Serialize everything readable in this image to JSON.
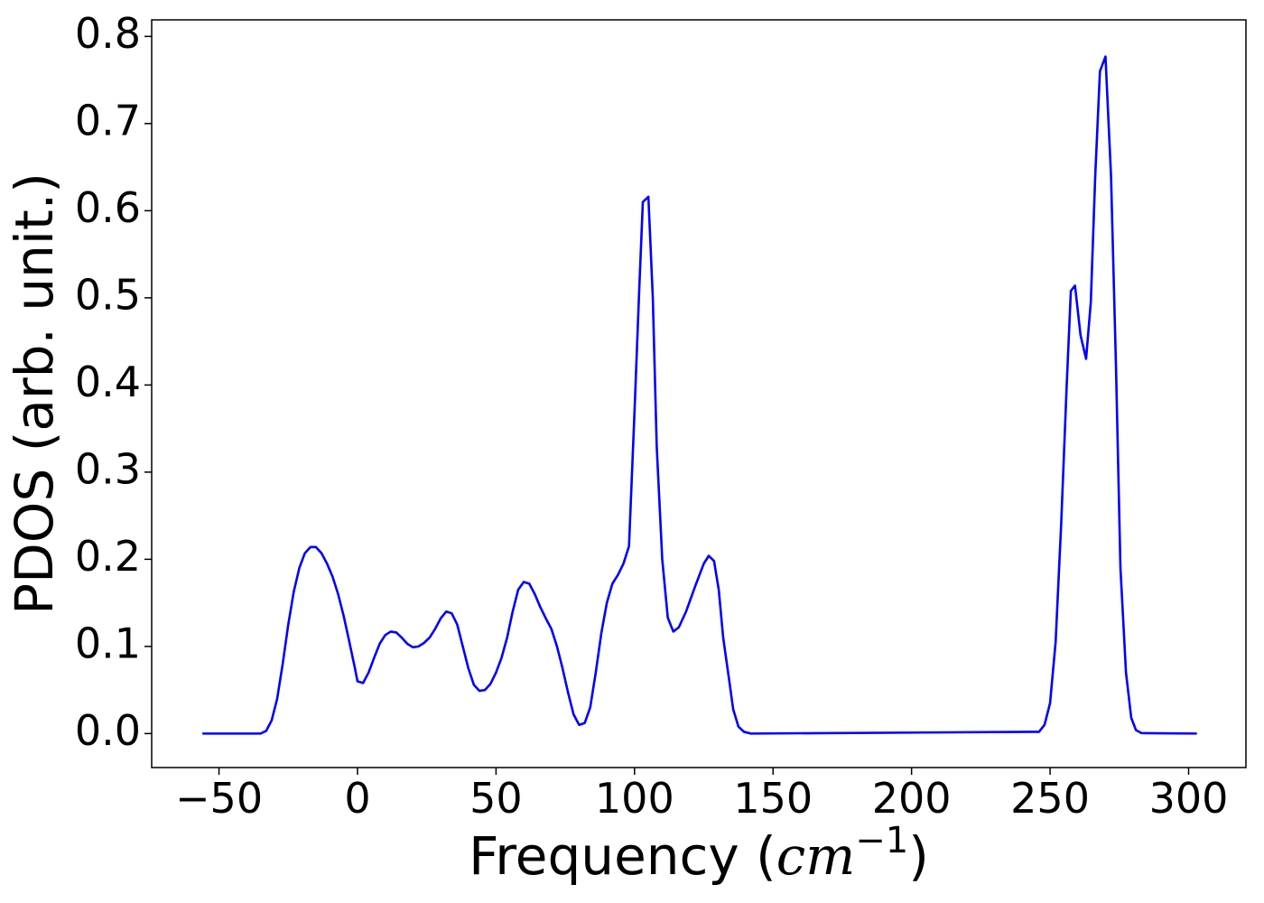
{
  "chart_data": {
    "type": "line",
    "ylabel": "PDOS (arb. unit.)",
    "xlabel": {
      "prefix": "Frequency (",
      "unit": "cm",
      "exponent": "−1",
      "suffix": ")"
    },
    "x": [
      -56,
      -35,
      -33,
      -31,
      -29,
      -27,
      -25,
      -23,
      -21,
      -19,
      -17,
      -15,
      -13,
      -11,
      -9,
      -7,
      -5,
      -3,
      -1,
      0,
      2,
      4,
      6,
      8,
      10,
      12,
      14,
      16,
      18,
      20,
      22,
      24,
      26,
      28,
      30,
      32,
      34,
      36,
      38,
      40,
      42,
      44,
      46,
      48,
      50,
      52,
      54,
      56,
      58,
      60,
      62,
      64,
      66,
      68,
      70,
      72,
      74,
      76,
      78,
      80,
      82,
      84,
      86,
      88,
      90,
      92,
      94,
      96,
      98,
      100,
      101.7,
      103,
      105,
      106.6,
      108,
      110,
      112,
      114,
      116,
      118.6,
      122,
      125,
      126.8,
      128.7,
      130.4,
      132,
      134,
      135.6,
      137.5,
      139.5,
      142,
      246,
      248,
      250,
      252,
      254,
      256,
      257.5,
      259,
      261,
      263,
      264.7,
      266.3,
      268,
      270,
      272,
      273.8,
      275.4,
      277.4,
      279.3,
      281,
      283,
      303
    ],
    "series": [
      {
        "color": "#0000ff",
        "values": [
          0,
          0,
          0.003,
          0.015,
          0.04,
          0.08,
          0.125,
          0.163,
          0.19,
          0.207,
          0.214,
          0.214,
          0.207,
          0.195,
          0.18,
          0.16,
          0.135,
          0.106,
          0.076,
          0.06,
          0.058,
          0.07,
          0.087,
          0.103,
          0.113,
          0.117,
          0.116,
          0.11,
          0.103,
          0.099,
          0.1,
          0.104,
          0.11,
          0.12,
          0.132,
          0.14,
          0.138,
          0.125,
          0.1,
          0.075,
          0.056,
          0.049,
          0.05,
          0.057,
          0.07,
          0.087,
          0.11,
          0.14,
          0.165,
          0.174,
          0.172,
          0.16,
          0.145,
          0.132,
          0.12,
          0.1,
          0.075,
          0.047,
          0.022,
          0.01,
          0.012,
          0.03,
          0.07,
          0.115,
          0.15,
          0.172,
          0.182,
          0.195,
          0.215,
          0.37,
          0.51,
          0.61,
          0.616,
          0.5,
          0.33,
          0.2,
          0.133,
          0.117,
          0.122,
          0.14,
          0.17,
          0.195,
          0.204,
          0.198,
          0.165,
          0.11,
          0.065,
          0.028,
          0.008,
          0.002,
          0,
          0.002,
          0.01,
          0.035,
          0.105,
          0.24,
          0.4,
          0.508,
          0.514,
          0.457,
          0.43,
          0.495,
          0.64,
          0.76,
          0.777,
          0.64,
          0.42,
          0.19,
          0.07,
          0.018,
          0.004,
          0.0005,
          0
        ]
      }
    ],
    "xlim": [
      -74.3,
      320.7
    ],
    "ylim": [
      -0.039,
      0.819
    ],
    "xticks": [
      {
        "value": -50,
        "label": "−50"
      },
      0,
      50,
      100,
      150,
      200,
      250,
      300
    ],
    "yticks": [
      {
        "value": 0,
        "label": "0.0"
      },
      0.1,
      0.2,
      0.3,
      0.4,
      0.5,
      0.6,
      0.7,
      0.8
    ],
    "grid": false
  }
}
